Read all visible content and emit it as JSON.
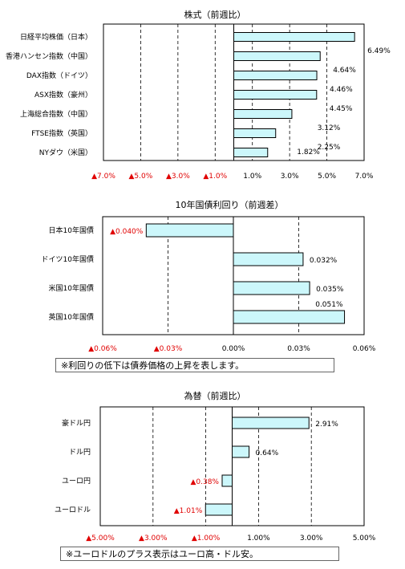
{
  "colors": {
    "bar_fill": "#ccf7fb",
    "bar_stroke": "#000000",
    "negative_text": "#e00000",
    "positive_text": "#000000"
  },
  "chart_data": [
    {
      "type": "bar",
      "orientation": "horizontal",
      "title": "株式（前週比）",
      "categories": [
        "日経平均株価（日本）",
        "香港ハンセン指数（中国）",
        "DAX指数（ドイツ）",
        "ASX指数（豪州）",
        "上海総合指数（中国）",
        "FTSE指数（英国）",
        "NYダウ（米国）"
      ],
      "values": [
        6.49,
        4.64,
        4.46,
        4.45,
        3.12,
        2.25,
        1.82
      ],
      "value_labels": [
        "6.49%",
        "4.64%",
        "4.46%",
        "4.45%",
        "3.12%",
        "2.25%",
        "1.82%"
      ],
      "xlim": [
        -7,
        7
      ],
      "ticks": [
        -7,
        -5,
        -3,
        -1,
        1,
        3,
        5,
        7
      ],
      "tick_labels": [
        "▲7.0%",
        "▲5.0%",
        "▲3.0%",
        "▲1.0%",
        "1.0%",
        "3.0%",
        "5.0%",
        "7.0%"
      ],
      "grid": "vertical dashed",
      "note": ""
    },
    {
      "type": "bar",
      "orientation": "horizontal",
      "title": "10年国債利回り（前週差）",
      "categories": [
        "日本10年国債",
        "ドイツ10年国債",
        "米国10年国債",
        "英国10年国債"
      ],
      "values": [
        -0.04,
        0.032,
        0.035,
        0.051
      ],
      "value_labels": [
        "▲0.040%",
        "0.032%",
        "0.035%",
        "0.051%"
      ],
      "xlim": [
        -0.06,
        0.06
      ],
      "ticks": [
        -0.06,
        -0.03,
        0,
        0.03,
        0.06
      ],
      "tick_labels": [
        "▲0.06%",
        "▲0.03%",
        "0.00%",
        "0.03%",
        "0.06%"
      ],
      "grid": "vertical dashed",
      "note": "※利回りの低下は債券価格の上昇を表します。"
    },
    {
      "type": "bar",
      "orientation": "horizontal",
      "title": "為替（前週比）",
      "categories": [
        "豪ドル円",
        "ドル円",
        "ユーロ円",
        "ユーロドル"
      ],
      "values": [
        2.91,
        0.64,
        -0.38,
        -1.01
      ],
      "value_labels": [
        "2.91%",
        "0.64%",
        "▲0.38%",
        "▲1.01%"
      ],
      "xlim": [
        -5,
        5
      ],
      "ticks": [
        -5,
        -3,
        -1,
        1,
        3,
        5
      ],
      "tick_labels": [
        "▲5.00%",
        "▲3.00%",
        "▲1.00%",
        "1.00%",
        "3.00%",
        "5.00%"
      ],
      "grid": "vertical dashed",
      "note": "※ユーロドルのプラス表示はユーロ高・ドル安。"
    }
  ]
}
